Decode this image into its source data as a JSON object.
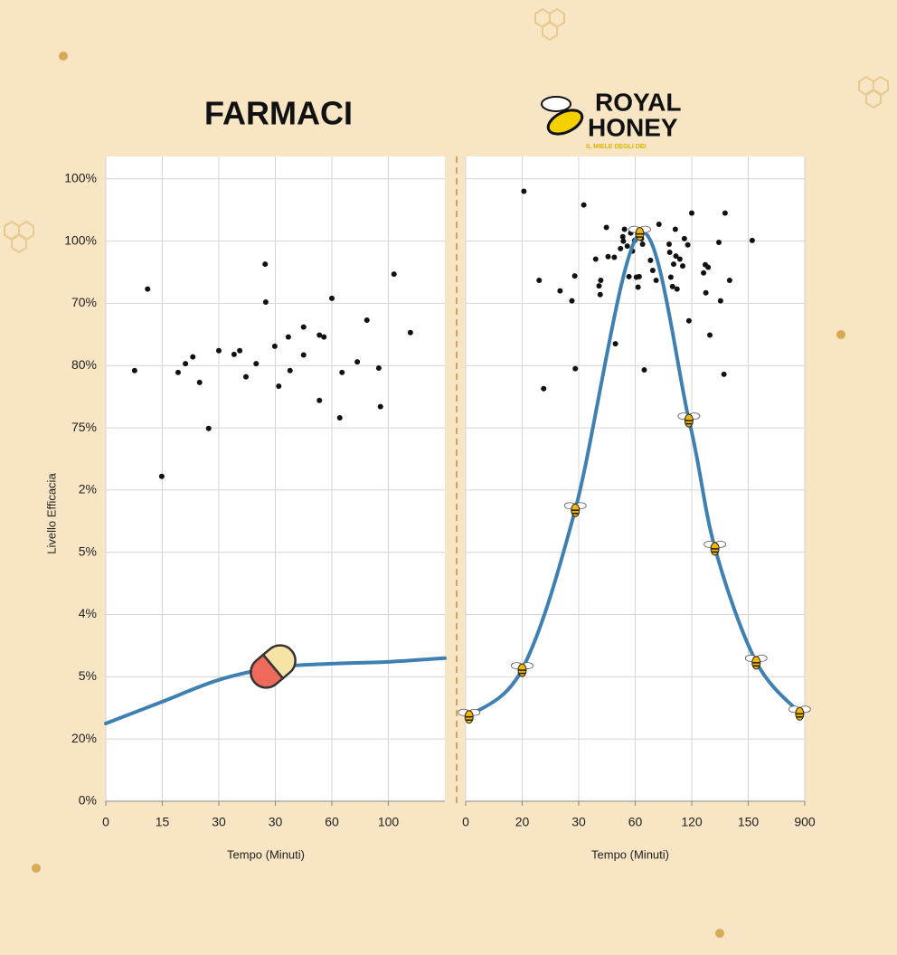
{
  "chart_data": [
    {
      "type": "scatter",
      "title": "FARMACI",
      "ylabel": "Livello Efficacia",
      "xlabel": "Tempo (Minuti)",
      "xlim": [
        0,
        6
      ],
      "ylim": [
        0,
        10.36
      ],
      "xticks": [
        0,
        {
          "value": 1,
          "label": "15"
        },
        {
          "value": 2,
          "label": "30"
        },
        {
          "value": 3,
          "label": "30"
        },
        {
          "value": 4,
          "label": "60"
        },
        {
          "value": 5,
          "label": "100"
        }
      ],
      "yticks": [
        {
          "value": 0,
          "label": "0%"
        },
        {
          "value": 1,
          "label": "20%"
        },
        {
          "value": 2,
          "label": "5%"
        },
        {
          "value": 3,
          "label": "4%"
        },
        {
          "value": 4,
          "label": "5%"
        },
        {
          "value": 5,
          "label": "2%"
        },
        {
          "value": 6,
          "label": "75%"
        },
        {
          "value": 7,
          "label": "80%"
        },
        {
          "value": 8,
          "label": "70%"
        },
        {
          "value": 9,
          "label": "100%"
        },
        {
          "value": 10,
          "label": "100%"
        }
      ],
      "grid": true,
      "points": {
        "color": "#111111",
        "x": [
          0.51,
          0.74,
          0.99,
          1.28,
          1.41,
          1.54,
          1.66,
          1.82,
          2.0,
          2.27,
          2.37,
          2.48,
          2.66,
          2.82,
          2.83,
          2.99,
          3.06,
          3.23,
          3.26,
          3.5,
          3.5,
          3.78,
          3.78,
          3.86,
          4.0,
          4.18,
          4.45,
          4.62,
          4.83,
          4.86,
          5.1,
          5.39,
          4.14
        ],
        "y": [
          6.92,
          8.23,
          5.22,
          6.89,
          7.03,
          7.14,
          6.73,
          5.99,
          7.24,
          7.18,
          7.24,
          6.82,
          7.03,
          8.63,
          8.02,
          7.31,
          6.67,
          7.46,
          6.92,
          7.62,
          7.17,
          6.44,
          7.49,
          7.46,
          8.08,
          6.89,
          7.06,
          7.73,
          6.96,
          6.34,
          8.47,
          7.53,
          6.16
        ]
      },
      "line": {
        "color": "#3f80b3",
        "x": [
          0,
          1,
          2,
          3,
          4,
          5,
          6
        ],
        "y": [
          1.25,
          1.6,
          1.95,
          2.15,
          2.21,
          2.24,
          2.3
        ]
      }
    },
    {
      "type": "scatter",
      "xlabel": "Tempo (Minuti)",
      "xlim": [
        0,
        6
      ],
      "ylim": [
        0,
        10.36
      ],
      "xticks": [
        0,
        {
          "value": 1,
          "label": "20"
        },
        {
          "value": 2,
          "label": "30"
        },
        {
          "value": 3,
          "label": "60"
        },
        {
          "value": 4,
          "label": "120"
        },
        {
          "value": 5,
          "label": "150"
        },
        {
          "value": 6,
          "label": "900"
        }
      ],
      "grid": true,
      "points": {
        "color": "#111111",
        "x": [
          1.03,
          2.09,
          1.3,
          1.38,
          1.67,
          1.88,
          1.93,
          1.94,
          2.3,
          2.36,
          2.39,
          2.38,
          2.49,
          2.52,
          2.63,
          2.65,
          2.74,
          2.78,
          2.79,
          2.81,
          2.86,
          2.89,
          2.92,
          2.95,
          2.99,
          3.02,
          3.05,
          3.07,
          3.11,
          3.13,
          3.16,
          3.27,
          3.31,
          3.37,
          3.42,
          3.6,
          3.61,
          3.63,
          3.66,
          3.68,
          3.71,
          3.72,
          3.74,
          3.79,
          3.84,
          3.87,
          3.93,
          3.95,
          4.0,
          4.21,
          4.24,
          4.25,
          4.29,
          4.32,
          4.48,
          4.51,
          4.57,
          4.59,
          4.67,
          5.07
        ],
        "y": [
          9.8,
          9.58,
          8.37,
          6.63,
          8.2,
          8.04,
          8.44,
          6.95,
          8.71,
          8.28,
          8.37,
          8.14,
          9.22,
          8.75,
          8.74,
          7.35,
          8.88,
          9.07,
          9.0,
          9.19,
          8.92,
          8.43,
          9.13,
          8.84,
          9.01,
          8.42,
          8.26,
          8.43,
          9.04,
          8.95,
          6.93,
          8.69,
          8.53,
          8.37,
          9.27,
          8.95,
          8.82,
          8.42,
          8.27,
          8.63,
          9.19,
          8.76,
          8.23,
          8.71,
          8.6,
          9.04,
          8.94,
          7.72,
          9.45,
          8.49,
          8.62,
          8.17,
          8.58,
          7.49,
          8.98,
          8.04,
          6.86,
          9.45,
          8.37,
          9.01
        ]
      },
      "line": {
        "color": "#3f80b3",
        "marker": "bee",
        "x": [
          0.06,
          1.0,
          1.94,
          3.08,
          3.95,
          4.41,
          5.14,
          5.91
        ],
        "y": [
          1.37,
          2.12,
          4.69,
          9.13,
          6.13,
          4.07,
          2.24,
          1.42
        ]
      }
    }
  ],
  "logo": {
    "line1": "ROYAL",
    "line2": "HONEY",
    "tagline": "IL MIELE DEGLI DEI"
  }
}
